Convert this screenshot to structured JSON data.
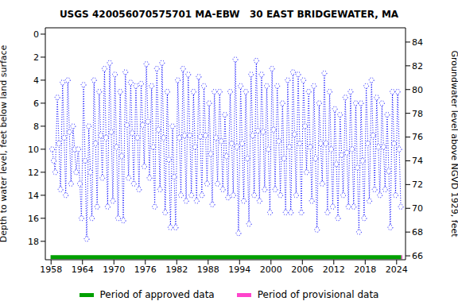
{
  "chart_data": {
    "type": "line",
    "title": "USGS 420056070575701 MA-EBW   30 EAST BRIDGEWATER, MA",
    "ylabel": "Depth to water level, feet below land surface",
    "y2label": "Groundwater level above NGVD 1929, feet",
    "xlim": [
      1956.9,
      2025.7
    ],
    "xticks": [
      1958,
      1964,
      1970,
      1976,
      1982,
      1988,
      1994,
      2000,
      2006,
      2012,
      2018,
      2024
    ],
    "ylim": [
      19.6,
      -0.55
    ],
    "yticks": [
      0,
      2,
      4,
      6,
      8,
      10,
      12,
      14,
      16,
      18
    ],
    "y2lim": [
      65.67,
      85.2
    ],
    "y2ticks": [
      66,
      68,
      70,
      72,
      74,
      76,
      78,
      80,
      82,
      84
    ],
    "x": [
      1958.2,
      1958.5,
      1958.8,
      1959.2,
      1959.5,
      1959.8,
      1960.2,
      1960.5,
      1960.8,
      1961.2,
      1961.5,
      1961.8,
      1962.2,
      1962.5,
      1962.8,
      1963.2,
      1963.5,
      1963.8,
      1964.2,
      1964.5,
      1964.8,
      1965.2,
      1965.5,
      1965.8,
      1966.2,
      1966.5,
      1966.8,
      1967.2,
      1967.5,
      1967.8,
      1968.2,
      1968.5,
      1968.8,
      1969.2,
      1969.5,
      1969.8,
      1970.2,
      1970.5,
      1970.8,
      1971.2,
      1971.5,
      1971.8,
      1972.2,
      1972.5,
      1972.8,
      1973.2,
      1973.5,
      1973.8,
      1974.2,
      1974.5,
      1974.8,
      1975.2,
      1975.5,
      1975.8,
      1976.2,
      1976.5,
      1976.8,
      1977.2,
      1977.5,
      1977.8,
      1978.2,
      1978.5,
      1978.8,
      1979.2,
      1979.5,
      1979.8,
      1980.2,
      1980.5,
      1980.8,
      1981.2,
      1981.5,
      1981.8,
      1982.2,
      1982.5,
      1982.8,
      1983.2,
      1983.5,
      1983.8,
      1984.2,
      1984.5,
      1984.8,
      1985.2,
      1985.5,
      1985.8,
      1986.2,
      1986.5,
      1986.8,
      1987.2,
      1987.5,
      1987.8,
      1988.2,
      1988.5,
      1988.8,
      1989.2,
      1989.5,
      1989.8,
      1990.2,
      1990.5,
      1990.8,
      1991.2,
      1991.5,
      1991.8,
      1992.2,
      1992.5,
      1992.8,
      1993.2,
      1993.5,
      1993.8,
      1994.2,
      1994.5,
      1994.8,
      1995.2,
      1995.5,
      1995.8,
      1996.2,
      1996.5,
      1996.8,
      1997.2,
      1997.5,
      1997.8,
      1998.2,
      1998.5,
      1998.8,
      1999.2,
      1999.5,
      1999.8,
      2000.2,
      2000.5,
      2000.8,
      2001.2,
      2001.5,
      2001.8,
      2002.2,
      2002.5,
      2002.8,
      2003.2,
      2003.5,
      2003.8,
      2004.2,
      2004.5,
      2004.8,
      2005.2,
      2005.5,
      2005.8,
      2006.2,
      2006.5,
      2006.8,
      2007.2,
      2007.5,
      2007.8,
      2008.2,
      2008.5,
      2008.8,
      2009.2,
      2009.5,
      2009.8,
      2010.2,
      2010.5,
      2010.8,
      2011.2,
      2011.5,
      2011.8,
      2012.2,
      2012.5,
      2012.8,
      2013.2,
      2013.5,
      2013.8,
      2014.2,
      2014.5,
      2014.8,
      2015.2,
      2015.5,
      2015.8,
      2016.2,
      2016.5,
      2016.8,
      2017.2,
      2017.5,
      2017.8,
      2018.2,
      2018.5,
      2018.8,
      2019.2,
      2019.5,
      2019.8,
      2020.2,
      2020.5,
      2020.8,
      2021.2,
      2021.5,
      2021.8,
      2022.2,
      2022.5,
      2022.8,
      2023.2,
      2023.5,
      2023.8,
      2024.2,
      2024.5,
      2024.8
    ],
    "series": [
      {
        "color": "#0000ff",
        "marker": "circle",
        "line_style": "dotted",
        "values": [
          10,
          11,
          12,
          5.5,
          9.5,
          13.5,
          4.2,
          9,
          14,
          4,
          8.5,
          13,
          8,
          10,
          12,
          10,
          13,
          16,
          4.4,
          11,
          17.8,
          8,
          12,
          16,
          4,
          9.5,
          15,
          5,
          8.8,
          12.5,
          3,
          9,
          15,
          2.5,
          8.5,
          14.5,
          3.5,
          9.8,
          16,
          5,
          10.6,
          16.2,
          3.3,
          7.9,
          12.5,
          4.2,
          8.6,
          13,
          4.5,
          9,
          13.5,
          4.3,
          7.9,
          11.5,
          2.6,
          7.6,
          12.5,
          4.5,
          9.8,
          15,
          3,
          8.3,
          13.5,
          2.5,
          9,
          15.5,
          5,
          10.9,
          16.8,
          8,
          12.4,
          16.8,
          4,
          9,
          14,
          3,
          8.8,
          14.5,
          3.5,
          8.8,
          14,
          5,
          9.8,
          14.5,
          3.7,
          8.9,
          14,
          4.5,
          8.8,
          13,
          6,
          10.4,
          14.8,
          5,
          9,
          13,
          5,
          9.3,
          13.5,
          7,
          10.6,
          14.2,
          5,
          9.5,
          14,
          2.2,
          9.8,
          17.3,
          4.5,
          9.5,
          14.5,
          5,
          10.8,
          16.5,
          3.5,
          8.8,
          14,
          2.3,
          8.4,
          14.5,
          3.5,
          8.5,
          13.5,
          4.5,
          10,
          15.5,
          3,
          8.3,
          13.5,
          4.5,
          9.3,
          14,
          6,
          10.8,
          15.5,
          4,
          9.8,
          15.5,
          3.3,
          8.7,
          14,
          3.5,
          9.5,
          15.5,
          4,
          8,
          12,
          5,
          9.8,
          14.5,
          4.5,
          10.8,
          17,
          6,
          9.5,
          13,
          3.4,
          9.5,
          15.5,
          5,
          10,
          15,
          6.5,
          11.3,
          16,
          7,
          10.5,
          14,
          5.5,
          10.3,
          15,
          5,
          10,
          15,
          6,
          11.6,
          17.2,
          6,
          11,
          16,
          4.5,
          9.5,
          14.5,
          4,
          8.8,
          13.5,
          5.5,
          9.8,
          14,
          6,
          9.8,
          13.5,
          7,
          11.9,
          16.8,
          5,
          9.5,
          14,
          5,
          10,
          15
        ]
      },
      {
        "name": "Period of approved data",
        "color": "#00a000",
        "marker": "none",
        "line_style": "solid",
        "x": [
          1957.9,
          2024.9
        ],
        "values": [
          19.38,
          19.38
        ]
      },
      {
        "name": "Period of provisional data",
        "color": "#ff44cc",
        "marker": "none",
        "line_style": "solid",
        "x": [
          2024.9,
          2025.1
        ],
        "values": [
          19.38,
          19.38
        ]
      }
    ]
  }
}
